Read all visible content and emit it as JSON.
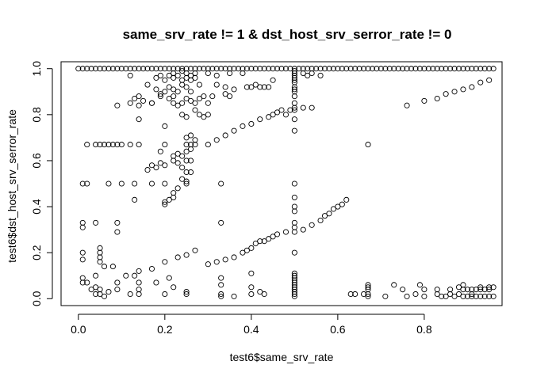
{
  "chart_data": {
    "type": "scatter",
    "title": "same_srv_rate != 1 & dst_host_srv_serror_rate != 0",
    "xlabel": "test6$same_srv_rate",
    "ylabel": "test6$dst_host_srv_serror_rate",
    "xlim": [
      -0.04,
      0.98
    ],
    "ylim": [
      -0.03,
      1.03
    ],
    "x_ticks": [
      0.0,
      0.2,
      0.4,
      0.6,
      0.8
    ],
    "x_tick_labels": [
      "0.0",
      "0.2",
      "0.4",
      "0.6",
      "0.8"
    ],
    "y_ticks": [
      0.0,
      0.2,
      0.4,
      0.6,
      0.8,
      1.0
    ],
    "y_tick_labels": [
      "0.0",
      "0.2",
      "0.4",
      "0.6",
      "0.8",
      "1.0"
    ],
    "grid": false,
    "legend": "none",
    "marker": "open-circle",
    "point_color": "#000000",
    "points": [
      [
        0.0,
        1.0
      ],
      [
        0.01,
        1.0
      ],
      [
        0.02,
        1.0
      ],
      [
        0.03,
        1.0
      ],
      [
        0.04,
        1.0
      ],
      [
        0.05,
        1.0
      ],
      [
        0.06,
        1.0
      ],
      [
        0.07,
        1.0
      ],
      [
        0.08,
        1.0
      ],
      [
        0.09,
        1.0
      ],
      [
        0.1,
        1.0
      ],
      [
        0.11,
        1.0
      ],
      [
        0.12,
        1.0
      ],
      [
        0.13,
        1.0
      ],
      [
        0.14,
        1.0
      ],
      [
        0.15,
        1.0
      ],
      [
        0.16,
        1.0
      ],
      [
        0.17,
        1.0
      ],
      [
        0.18,
        1.0
      ],
      [
        0.19,
        1.0
      ],
      [
        0.2,
        1.0
      ],
      [
        0.21,
        1.0
      ],
      [
        0.22,
        1.0
      ],
      [
        0.23,
        1.0
      ],
      [
        0.24,
        1.0
      ],
      [
        0.25,
        1.0
      ],
      [
        0.26,
        1.0
      ],
      [
        0.27,
        1.0
      ],
      [
        0.28,
        1.0
      ],
      [
        0.29,
        1.0
      ],
      [
        0.3,
        1.0
      ],
      [
        0.31,
        1.0
      ],
      [
        0.32,
        1.0
      ],
      [
        0.33,
        1.0
      ],
      [
        0.34,
        1.0
      ],
      [
        0.35,
        1.0
      ],
      [
        0.36,
        1.0
      ],
      [
        0.37,
        1.0
      ],
      [
        0.38,
        1.0
      ],
      [
        0.39,
        1.0
      ],
      [
        0.4,
        1.0
      ],
      [
        0.41,
        1.0
      ],
      [
        0.42,
        1.0
      ],
      [
        0.43,
        1.0
      ],
      [
        0.44,
        1.0
      ],
      [
        0.45,
        1.0
      ],
      [
        0.46,
        1.0
      ],
      [
        0.47,
        1.0
      ],
      [
        0.48,
        1.0
      ],
      [
        0.49,
        1.0
      ],
      [
        0.5,
        1.0
      ],
      [
        0.51,
        1.0
      ],
      [
        0.52,
        1.0
      ],
      [
        0.53,
        1.0
      ],
      [
        0.54,
        1.0
      ],
      [
        0.55,
        1.0
      ],
      [
        0.56,
        1.0
      ],
      [
        0.57,
        1.0
      ],
      [
        0.58,
        1.0
      ],
      [
        0.59,
        1.0
      ],
      [
        0.6,
        1.0
      ],
      [
        0.61,
        1.0
      ],
      [
        0.62,
        1.0
      ],
      [
        0.63,
        1.0
      ],
      [
        0.64,
        1.0
      ],
      [
        0.65,
        1.0
      ],
      [
        0.66,
        1.0
      ],
      [
        0.67,
        1.0
      ],
      [
        0.68,
        1.0
      ],
      [
        0.69,
        1.0
      ],
      [
        0.7,
        1.0
      ],
      [
        0.71,
        1.0
      ],
      [
        0.72,
        1.0
      ],
      [
        0.73,
        1.0
      ],
      [
        0.74,
        1.0
      ],
      [
        0.75,
        1.0
      ],
      [
        0.76,
        1.0
      ],
      [
        0.77,
        1.0
      ],
      [
        0.78,
        1.0
      ],
      [
        0.79,
        1.0
      ],
      [
        0.8,
        1.0
      ],
      [
        0.81,
        1.0
      ],
      [
        0.82,
        1.0
      ],
      [
        0.83,
        1.0
      ],
      [
        0.84,
        1.0
      ],
      [
        0.85,
        1.0
      ],
      [
        0.86,
        1.0
      ],
      [
        0.87,
        1.0
      ],
      [
        0.88,
        1.0
      ],
      [
        0.89,
        1.0
      ],
      [
        0.9,
        1.0
      ],
      [
        0.91,
        1.0
      ],
      [
        0.92,
        1.0
      ],
      [
        0.93,
        1.0
      ],
      [
        0.94,
        1.0
      ],
      [
        0.95,
        1.0
      ],
      [
        0.96,
        1.0
      ],
      [
        0.12,
        0.97
      ],
      [
        0.18,
        0.96
      ],
      [
        0.19,
        0.97
      ],
      [
        0.2,
        0.95
      ],
      [
        0.21,
        0.97
      ],
      [
        0.22,
        0.96
      ],
      [
        0.22,
        0.98
      ],
      [
        0.23,
        0.97
      ],
      [
        0.24,
        0.95
      ],
      [
        0.24,
        0.99
      ],
      [
        0.25,
        0.96
      ],
      [
        0.25,
        0.98
      ],
      [
        0.26,
        0.97
      ],
      [
        0.26,
        0.95
      ],
      [
        0.27,
        0.96
      ],
      [
        0.27,
        0.98
      ],
      [
        0.3,
        0.98
      ],
      [
        0.32,
        0.97
      ],
      [
        0.35,
        0.98
      ],
      [
        0.38,
        0.98
      ],
      [
        0.5,
        0.99
      ],
      [
        0.5,
        0.98
      ],
      [
        0.5,
        0.97
      ],
      [
        0.5,
        0.96
      ],
      [
        0.5,
        0.95
      ],
      [
        0.5,
        0.94
      ],
      [
        0.52,
        0.98
      ],
      [
        0.53,
        0.97
      ],
      [
        0.54,
        0.98
      ],
      [
        0.56,
        0.97
      ],
      [
        0.16,
        0.93
      ],
      [
        0.18,
        0.91
      ],
      [
        0.19,
        0.89
      ],
      [
        0.2,
        0.9
      ],
      [
        0.21,
        0.92
      ],
      [
        0.22,
        0.88
      ],
      [
        0.22,
        0.91
      ],
      [
        0.23,
        0.9
      ],
      [
        0.24,
        0.93
      ],
      [
        0.25,
        0.92
      ],
      [
        0.26,
        0.9
      ],
      [
        0.28,
        0.93
      ],
      [
        0.32,
        0.93
      ],
      [
        0.34,
        0.92
      ],
      [
        0.36,
        0.91
      ],
      [
        0.39,
        0.92
      ],
      [
        0.4,
        0.92
      ],
      [
        0.41,
        0.93
      ],
      [
        0.42,
        0.92
      ],
      [
        0.43,
        0.92
      ],
      [
        0.44,
        0.92
      ],
      [
        0.45,
        0.95
      ],
      [
        0.5,
        0.92
      ],
      [
        0.5,
        0.91
      ],
      [
        0.5,
        0.9
      ],
      [
        0.5,
        0.88
      ],
      [
        0.13,
        0.87
      ],
      [
        0.14,
        0.88
      ],
      [
        0.15,
        0.86
      ],
      [
        0.17,
        0.85
      ],
      [
        0.19,
        0.88
      ],
      [
        0.21,
        0.87
      ],
      [
        0.22,
        0.85
      ],
      [
        0.23,
        0.84
      ],
      [
        0.24,
        0.85
      ],
      [
        0.25,
        0.87
      ],
      [
        0.26,
        0.86
      ],
      [
        0.27,
        0.85
      ],
      [
        0.28,
        0.87
      ],
      [
        0.29,
        0.88
      ],
      [
        0.3,
        0.85
      ],
      [
        0.31,
        0.88
      ],
      [
        0.34,
        0.89
      ],
      [
        0.35,
        0.88
      ],
      [
        0.09,
        0.84
      ],
      [
        0.12,
        0.85
      ],
      [
        0.14,
        0.84
      ],
      [
        0.17,
        0.85
      ],
      [
        0.24,
        0.8
      ],
      [
        0.25,
        0.79
      ],
      [
        0.27,
        0.82
      ],
      [
        0.28,
        0.8
      ],
      [
        0.29,
        0.79
      ],
      [
        0.3,
        0.8
      ],
      [
        0.14,
        0.78
      ],
      [
        0.2,
        0.75
      ],
      [
        0.3,
        0.67
      ],
      [
        0.32,
        0.69
      ],
      [
        0.34,
        0.71
      ],
      [
        0.36,
        0.73
      ],
      [
        0.38,
        0.75
      ],
      [
        0.4,
        0.76
      ],
      [
        0.42,
        0.78
      ],
      [
        0.44,
        0.79
      ],
      [
        0.45,
        0.8
      ],
      [
        0.46,
        0.81
      ],
      [
        0.47,
        0.82
      ],
      [
        0.48,
        0.8
      ],
      [
        0.49,
        0.82
      ],
      [
        0.5,
        0.85
      ],
      [
        0.5,
        0.83
      ],
      [
        0.5,
        0.82
      ],
      [
        0.5,
        0.78
      ],
      [
        0.5,
        0.73
      ],
      [
        0.52,
        0.83
      ],
      [
        0.54,
        0.83
      ],
      [
        0.76,
        0.84
      ],
      [
        0.8,
        0.86
      ],
      [
        0.83,
        0.87
      ],
      [
        0.85,
        0.89
      ],
      [
        0.87,
        0.9
      ],
      [
        0.89,
        0.91
      ],
      [
        0.91,
        0.92
      ],
      [
        0.93,
        0.94
      ],
      [
        0.95,
        0.95
      ],
      [
        0.02,
        0.67
      ],
      [
        0.04,
        0.67
      ],
      [
        0.05,
        0.67
      ],
      [
        0.06,
        0.67
      ],
      [
        0.07,
        0.67
      ],
      [
        0.08,
        0.67
      ],
      [
        0.09,
        0.67
      ],
      [
        0.1,
        0.67
      ],
      [
        0.12,
        0.67
      ],
      [
        0.14,
        0.67
      ],
      [
        0.2,
        0.67
      ],
      [
        0.25,
        0.67
      ],
      [
        0.26,
        0.67
      ],
      [
        0.27,
        0.67
      ],
      [
        0.67,
        0.67
      ],
      [
        0.25,
        0.7
      ],
      [
        0.26,
        0.71
      ],
      [
        0.25,
        0.64
      ],
      [
        0.26,
        0.65
      ],
      [
        0.27,
        0.69
      ],
      [
        0.19,
        0.64
      ],
      [
        0.22,
        0.62
      ],
      [
        0.23,
        0.63
      ],
      [
        0.24,
        0.62
      ],
      [
        0.25,
        0.6
      ],
      [
        0.26,
        0.6
      ],
      [
        0.16,
        0.56
      ],
      [
        0.17,
        0.58
      ],
      [
        0.18,
        0.57
      ],
      [
        0.19,
        0.59
      ],
      [
        0.2,
        0.58
      ],
      [
        0.22,
        0.6
      ],
      [
        0.23,
        0.59
      ],
      [
        0.24,
        0.57
      ],
      [
        0.25,
        0.55
      ],
      [
        0.26,
        0.55
      ],
      [
        0.01,
        0.5
      ],
      [
        0.02,
        0.5
      ],
      [
        0.07,
        0.5
      ],
      [
        0.1,
        0.5
      ],
      [
        0.13,
        0.5
      ],
      [
        0.17,
        0.5
      ],
      [
        0.2,
        0.5
      ],
      [
        0.25,
        0.5
      ],
      [
        0.33,
        0.5
      ],
      [
        0.5,
        0.5
      ],
      [
        0.24,
        0.52
      ],
      [
        0.25,
        0.51
      ],
      [
        0.23,
        0.48
      ],
      [
        0.22,
        0.46
      ],
      [
        0.22,
        0.44
      ],
      [
        0.21,
        0.43
      ],
      [
        0.13,
        0.43
      ],
      [
        0.2,
        0.42
      ],
      [
        0.2,
        0.41
      ],
      [
        0.5,
        0.44
      ],
      [
        0.5,
        0.4
      ],
      [
        0.5,
        0.38
      ],
      [
        0.5,
        0.33
      ],
      [
        0.5,
        0.31
      ],
      [
        0.5,
        0.29
      ],
      [
        0.52,
        0.3
      ],
      [
        0.54,
        0.32
      ],
      [
        0.56,
        0.34
      ],
      [
        0.57,
        0.36
      ],
      [
        0.58,
        0.37
      ],
      [
        0.59,
        0.39
      ],
      [
        0.6,
        0.4
      ],
      [
        0.61,
        0.41
      ],
      [
        0.62,
        0.43
      ],
      [
        0.48,
        0.29
      ],
      [
        0.46,
        0.28
      ],
      [
        0.45,
        0.27
      ],
      [
        0.44,
        0.26
      ],
      [
        0.43,
        0.25
      ],
      [
        0.42,
        0.25
      ],
      [
        0.41,
        0.24
      ],
      [
        0.4,
        0.22
      ],
      [
        0.39,
        0.21
      ],
      [
        0.38,
        0.2
      ],
      [
        0.36,
        0.18
      ],
      [
        0.34,
        0.17
      ],
      [
        0.32,
        0.16
      ],
      [
        0.3,
        0.15
      ],
      [
        0.27,
        0.21
      ],
      [
        0.25,
        0.19
      ],
      [
        0.23,
        0.18
      ],
      [
        0.2,
        0.16
      ],
      [
        0.17,
        0.13
      ],
      [
        0.14,
        0.12
      ],
      [
        0.11,
        0.1
      ],
      [
        0.01,
        0.33
      ],
      [
        0.01,
        0.31
      ],
      [
        0.04,
        0.33
      ],
      [
        0.09,
        0.33
      ],
      [
        0.09,
        0.29
      ],
      [
        0.33,
        0.33
      ],
      [
        0.01,
        0.2
      ],
      [
        0.01,
        0.17
      ],
      [
        0.05,
        0.22
      ],
      [
        0.05,
        0.2
      ],
      [
        0.05,
        0.18
      ],
      [
        0.05,
        0.16
      ],
      [
        0.06,
        0.14
      ],
      [
        0.04,
        0.1
      ],
      [
        0.08,
        0.14
      ],
      [
        0.5,
        0.2
      ],
      [
        0.5,
        0.11
      ],
      [
        0.5,
        0.1
      ],
      [
        0.5,
        0.09
      ],
      [
        0.5,
        0.08
      ],
      [
        0.5,
        0.07
      ],
      [
        0.5,
        0.06
      ],
      [
        0.5,
        0.05
      ],
      [
        0.5,
        0.04
      ],
      [
        0.5,
        0.03
      ],
      [
        0.01,
        0.09
      ],
      [
        0.01,
        0.07
      ],
      [
        0.02,
        0.07
      ],
      [
        0.03,
        0.04
      ],
      [
        0.04,
        0.05
      ],
      [
        0.04,
        0.02
      ],
      [
        0.05,
        0.02
      ],
      [
        0.05,
        0.04
      ],
      [
        0.06,
        0.01
      ],
      [
        0.07,
        0.03
      ],
      [
        0.09,
        0.07
      ],
      [
        0.09,
        0.04
      ],
      [
        0.12,
        0.02
      ],
      [
        0.13,
        0.1
      ],
      [
        0.14,
        0.07
      ],
      [
        0.14,
        0.04
      ],
      [
        0.14,
        0.02
      ],
      [
        0.18,
        0.07
      ],
      [
        0.2,
        0.02
      ],
      [
        0.21,
        0.09
      ],
      [
        0.22,
        0.05
      ],
      [
        0.25,
        0.02
      ],
      [
        0.25,
        0.03
      ],
      [
        0.33,
        0.09
      ],
      [
        0.33,
        0.06
      ],
      [
        0.33,
        0.02
      ],
      [
        0.33,
        0.01
      ],
      [
        0.36,
        0.01
      ],
      [
        0.4,
        0.11
      ],
      [
        0.4,
        0.05
      ],
      [
        0.4,
        0.02
      ],
      [
        0.42,
        0.03
      ],
      [
        0.43,
        0.02
      ],
      [
        0.5,
        0.02
      ],
      [
        0.5,
        0.01
      ],
      [
        0.63,
        0.02
      ],
      [
        0.64,
        0.02
      ],
      [
        0.66,
        0.02
      ],
      [
        0.67,
        0.06
      ],
      [
        0.67,
        0.05
      ],
      [
        0.67,
        0.04
      ],
      [
        0.67,
        0.02
      ],
      [
        0.67,
        0.01
      ],
      [
        0.71,
        0.01
      ],
      [
        0.73,
        0.06
      ],
      [
        0.75,
        0.04
      ],
      [
        0.76,
        0.01
      ],
      [
        0.78,
        0.02
      ],
      [
        0.79,
        0.06
      ],
      [
        0.8,
        0.04
      ],
      [
        0.8,
        0.01
      ],
      [
        0.83,
        0.04
      ],
      [
        0.83,
        0.02
      ],
      [
        0.84,
        0.01
      ],
      [
        0.85,
        0.01
      ],
      [
        0.86,
        0.04
      ],
      [
        0.86,
        0.02
      ],
      [
        0.87,
        0.01
      ],
      [
        0.88,
        0.05
      ],
      [
        0.88,
        0.02
      ],
      [
        0.89,
        0.06
      ],
      [
        0.89,
        0.04
      ],
      [
        0.89,
        0.01
      ],
      [
        0.9,
        0.04
      ],
      [
        0.9,
        0.01
      ],
      [
        0.91,
        0.04
      ],
      [
        0.91,
        0.02
      ],
      [
        0.91,
        0.01
      ],
      [
        0.92,
        0.04
      ],
      [
        0.92,
        0.01
      ],
      [
        0.93,
        0.05
      ],
      [
        0.93,
        0.04
      ],
      [
        0.93,
        0.01
      ],
      [
        0.94,
        0.04
      ],
      [
        0.94,
        0.01
      ],
      [
        0.95,
        0.05
      ],
      [
        0.95,
        0.04
      ],
      [
        0.95,
        0.01
      ],
      [
        0.96,
        0.05
      ],
      [
        0.96,
        0.01
      ]
    ]
  }
}
